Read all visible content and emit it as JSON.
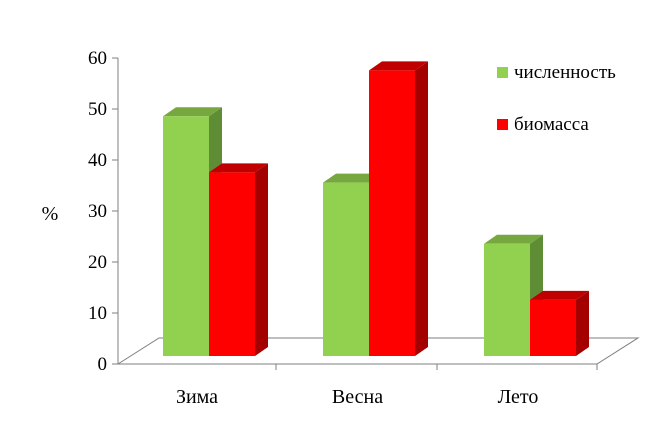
{
  "chart_data": {
    "type": "bar",
    "style": "3d-clustered-column",
    "categories": [
      "Зима",
      "Весна",
      "Лето"
    ],
    "series": [
      {
        "name": "численность",
        "values": [
          47,
          34,
          22
        ],
        "color": "#92d050",
        "side_color": "#5f8d35",
        "top_color": "#76a83f"
      },
      {
        "name": "биомасса",
        "values": [
          36,
          56,
          11
        ],
        "color": "#ff0000",
        "side_color": "#a50000",
        "top_color": "#c00000"
      }
    ],
    "ylabel": "%",
    "ylim": [
      0,
      60
    ],
    "yticks": [
      "0",
      "10",
      "20",
      "30",
      "40",
      "50",
      "60"
    ],
    "grid": false,
    "legend_position": "top-right"
  }
}
